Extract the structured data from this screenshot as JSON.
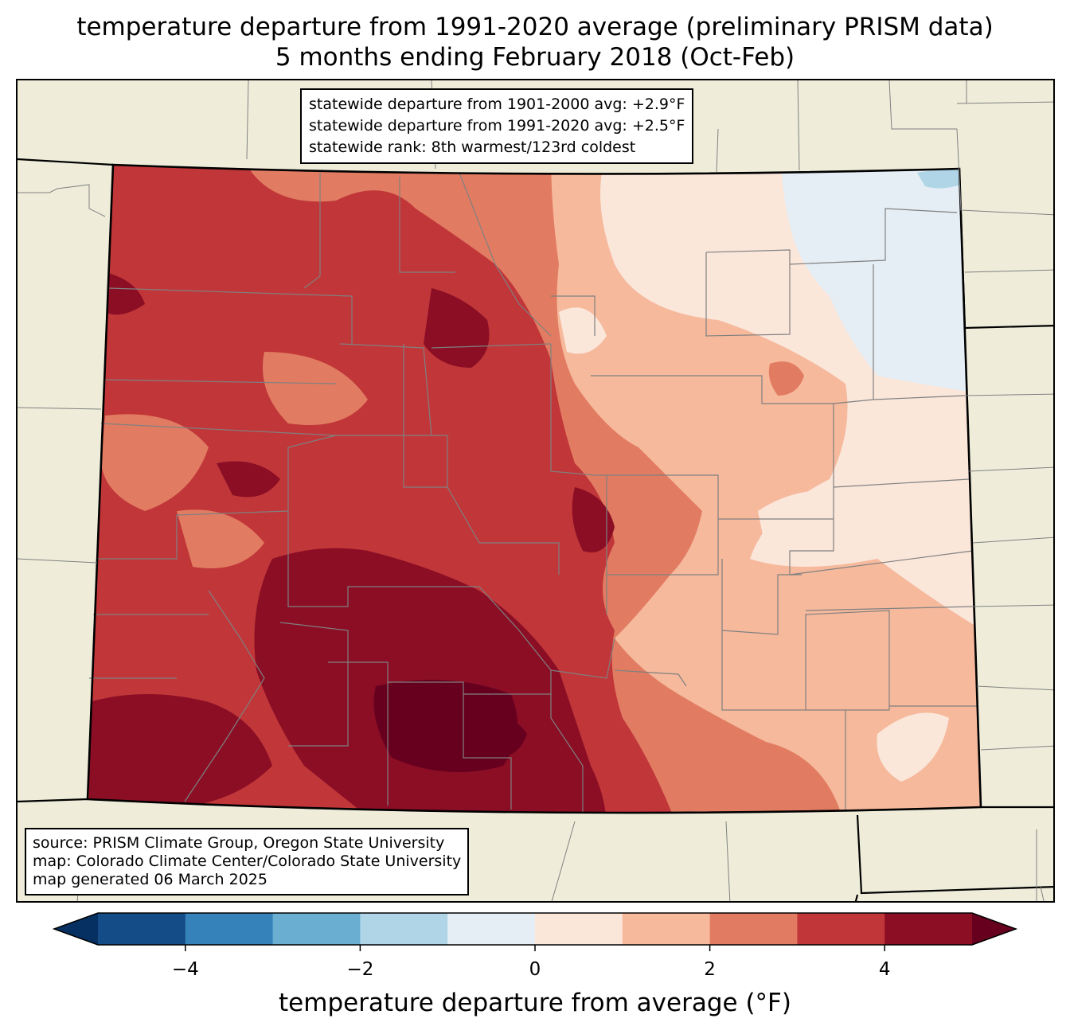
{
  "title": {
    "line1": "temperature departure from 1991-2020 average (preliminary PRISM data)",
    "line2": "5 months ending February 2018 (Oct-Feb)"
  },
  "stats": {
    "line1": "statewide departure from 1901-2000 avg: +2.9°F",
    "line2": "statewide departure from 1991-2020 avg: +2.5°F",
    "line3": "statewide rank: 8th warmest/123rd coldest"
  },
  "source": {
    "line1": "source: PRISM Climate Group, Oregon State University",
    "line2": "map: Colorado Climate Center/Colorado State University",
    "line3": "map generated 06 March 2025"
  },
  "colorbar": {
    "label": "temperature departure from average (°F)",
    "ticks": [
      "−4",
      "−2",
      "0",
      "2",
      "4"
    ],
    "tick_values": [
      -4,
      -2,
      0,
      2,
      4
    ],
    "bounds": [
      -5,
      -4,
      -3,
      -2,
      -1,
      0,
      1,
      2,
      3,
      4,
      5
    ],
    "colors": [
      "#144c87",
      "#3581ba",
      "#6aaed2",
      "#b0d5e7",
      "#e5eef5",
      "#fbe6da",
      "#f6b99c",
      "#e17c62",
      "#c13639",
      "#8b0e25"
    ],
    "under_color": "#053061",
    "over_color": "#67001f"
  },
  "map_colors": {
    "land": "#efedda",
    "county_lines": "#808080",
    "state_lines": "#000000"
  }
}
